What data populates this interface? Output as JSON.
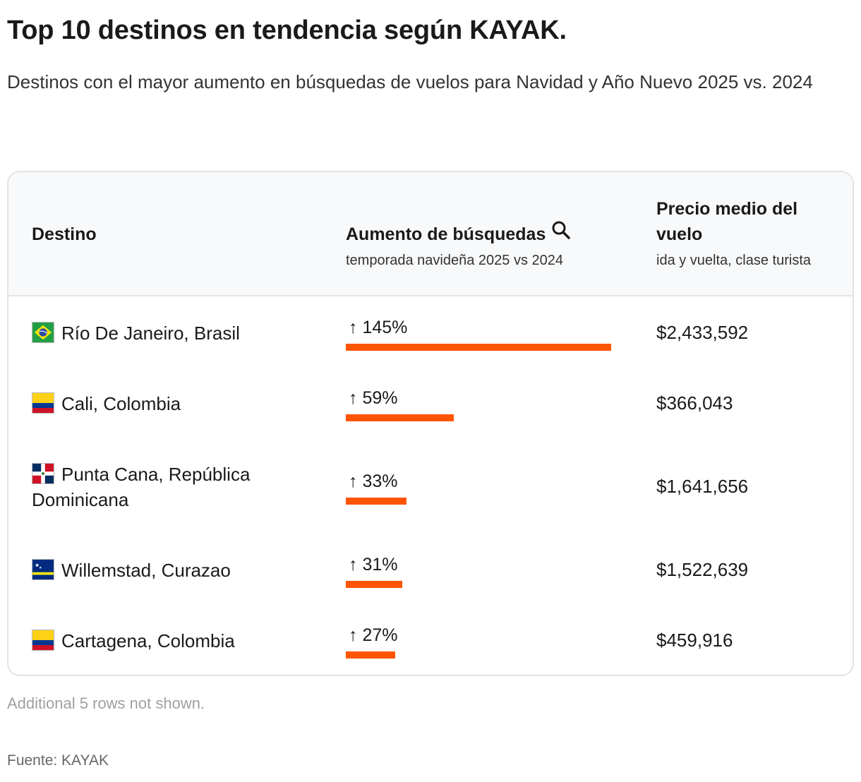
{
  "title": "Top 10 destinos en tendencia según KAYAK.",
  "subtitle": "Destinos con el mayor aumento en búsquedas de vuelos para Navidad y Año Nuevo 2025 vs. 2024",
  "table": {
    "headers": {
      "destino": "Destino",
      "aumento": "Aumento de búsquedas",
      "aumento_sub": "temporada navideña 2025 vs 2024",
      "precio": "Precio medio del vuelo",
      "precio_sub": "ida y vuelta, clase turista"
    },
    "icon": "search-icon",
    "rows": [
      {
        "destino": "Río De Janeiro, Brasil",
        "flag": "brazil-flag-icon",
        "aumento_label": "↑ 145%",
        "aumento": 145,
        "precio": "$2,433,592"
      },
      {
        "destino": "Cali, Colombia",
        "flag": "colombia-flag-icon",
        "aumento_label": "↑ 59%",
        "aumento": 59,
        "precio": "$366,043"
      },
      {
        "destino": "Punta Cana, República Dominicana",
        "flag": "dominican-republic-flag-icon",
        "aumento_label": "↑ 33%",
        "aumento": 33,
        "precio": "$1,641,656"
      },
      {
        "destino": "Willemstad, Curazao",
        "flag": "curacao-flag-icon",
        "aumento_label": "↑ 31%",
        "aumento": 31,
        "precio": "$1,522,639"
      },
      {
        "destino": "Cartagena, Colombia",
        "flag": "colombia-flag-icon",
        "aumento_label": "↑ 27%",
        "aumento": 27,
        "precio": "$459,916"
      }
    ]
  },
  "chart_data": {
    "type": "table",
    "categories": [
      "Río De Janeiro, Brasil",
      "Cali, Colombia",
      "Punta Cana, República Dominicana",
      "Willemstad, Curazao",
      "Cartagena, Colombia"
    ],
    "series": [
      {
        "name": "Aumento de búsquedas",
        "values": [
          145,
          59,
          33,
          31,
          27
        ]
      },
      {
        "name": "Precio medio del vuelo",
        "values": [
          2433592,
          366043,
          1641656,
          1522639,
          459916
        ]
      }
    ]
  },
  "colors": {
    "bar": "#ff5500"
  },
  "note": "Additional 5 rows not shown.",
  "source": "Fuente: KAYAK"
}
